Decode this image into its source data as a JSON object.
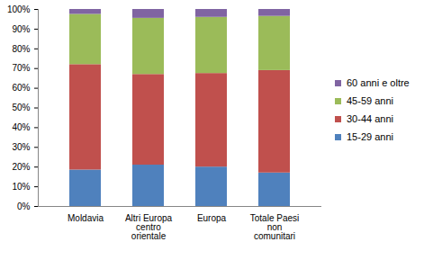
{
  "chart_data": {
    "type": "bar",
    "stacked": true,
    "categories": [
      "Moldavia",
      "Altri Europa centro orientale",
      "Europa",
      "Totale Paesi non comunitari"
    ],
    "series": [
      {
        "name": "15-29 anni",
        "color": "#4f81bd",
        "values": [
          18.5,
          21,
          20,
          17
        ]
      },
      {
        "name": "30-44 anni",
        "color": "#c0504d",
        "values": [
          53.5,
          46,
          47.5,
          52
        ]
      },
      {
        "name": "45-59 anni",
        "color": "#9bbb59",
        "values": [
          25.5,
          28.5,
          28.5,
          27.5
        ]
      },
      {
        "name": "60 anni e oltre",
        "color": "#8064a2",
        "values": [
          2.5,
          4.5,
          4,
          3.5
        ]
      }
    ],
    "ylim": [
      0,
      100
    ],
    "yticks": [
      {
        "value": 0,
        "label": "0%"
      },
      {
        "value": 10,
        "label": "10%"
      },
      {
        "value": 20,
        "label": "20%"
      },
      {
        "value": 30,
        "label": "30%"
      },
      {
        "value": 40,
        "label": "40%"
      },
      {
        "value": 50,
        "label": "50%"
      },
      {
        "value": 60,
        "label": "60%"
      },
      {
        "value": 70,
        "label": "70%"
      },
      {
        "value": 80,
        "label": "80%"
      },
      {
        "value": 90,
        "label": "90%"
      },
      {
        "value": 100,
        "label": "100%"
      }
    ],
    "grid": false,
    "legend": "right"
  }
}
